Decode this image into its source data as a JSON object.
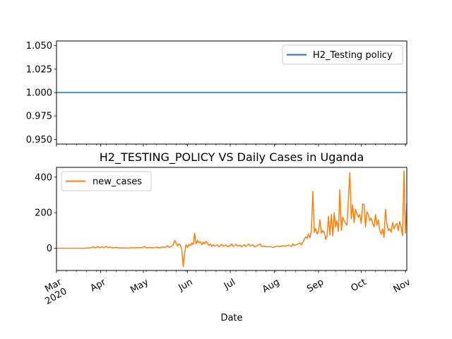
{
  "chart_data": [
    {
      "type": "line",
      "title": "",
      "xlabel": "",
      "ylabel": "",
      "xlim": [
        "2020-03-01",
        "2020-11-02"
      ],
      "ylim": [
        0.945,
        1.055
      ],
      "yticks": [
        0.95,
        0.975,
        1.0,
        1.025,
        1.05
      ],
      "ytick_labels": [
        "0.950",
        "0.975",
        "1.000",
        "1.025",
        "1.050"
      ],
      "grid": false,
      "legend_position": "upper right",
      "series": [
        {
          "name": "H2_Testing policy",
          "color": "#1f77b4",
          "x": [
            "2020-03-01",
            "2020-11-02"
          ],
          "y": [
            1.0,
            1.0
          ]
        }
      ]
    },
    {
      "type": "line",
      "title": "H2_TESTING_POLICY VS Daily Cases in Uganda",
      "xlabel": "Date",
      "ylabel": "",
      "xlim": [
        "2020-03-01",
        "2020-11-02"
      ],
      "ylim": [
        -125,
        455
      ],
      "yticks": [
        0,
        200,
        400
      ],
      "ytick_labels": [
        "0",
        "200",
        "400"
      ],
      "xtick_labels": [
        {
          "date": "2020-03-01",
          "lines": [
            "Mar",
            "2020"
          ]
        },
        {
          "date": "2020-04-01",
          "lines": [
            "Apr"
          ]
        },
        {
          "date": "2020-05-01",
          "lines": [
            "May"
          ]
        },
        {
          "date": "2020-06-01",
          "lines": [
            "Jun"
          ]
        },
        {
          "date": "2020-07-01",
          "lines": [
            "Jul"
          ]
        },
        {
          "date": "2020-08-01",
          "lines": [
            "Aug"
          ]
        },
        {
          "date": "2020-09-01",
          "lines": [
            "Sep"
          ]
        },
        {
          "date": "2020-10-01",
          "lines": [
            "Oct"
          ]
        },
        {
          "date": "2020-11-01",
          "lines": [
            "Nov"
          ]
        }
      ],
      "grid": false,
      "legend_position": "upper left",
      "series": [
        {
          "name": "new_cases",
          "color": "#ff7f0e",
          "points": [
            [
              "2020-03-01",
              0
            ],
            [
              "2020-03-20",
              0
            ],
            [
              "2020-03-22",
              1
            ],
            [
              "2020-03-25",
              2
            ],
            [
              "2020-03-27",
              8
            ],
            [
              "2020-03-28",
              2
            ],
            [
              "2020-03-30",
              10
            ],
            [
              "2020-03-31",
              3
            ],
            [
              "2020-04-02",
              9
            ],
            [
              "2020-04-03",
              3
            ],
            [
              "2020-04-05",
              11
            ],
            [
              "2020-04-06",
              4
            ],
            [
              "2020-04-08",
              7
            ],
            [
              "2020-04-09",
              2
            ],
            [
              "2020-04-12",
              5
            ],
            [
              "2020-04-14",
              1
            ],
            [
              "2020-04-17",
              2
            ],
            [
              "2020-04-20",
              1
            ],
            [
              "2020-04-23",
              3
            ],
            [
              "2020-04-25",
              2
            ],
            [
              "2020-04-28",
              4
            ],
            [
              "2020-04-30",
              3
            ],
            [
              "2020-05-02",
              10
            ],
            [
              "2020-05-03",
              2
            ],
            [
              "2020-05-05",
              4
            ],
            [
              "2020-05-08",
              3
            ],
            [
              "2020-05-11",
              6
            ],
            [
              "2020-05-12",
              2
            ],
            [
              "2020-05-15",
              8
            ],
            [
              "2020-05-16",
              3
            ],
            [
              "2020-05-18",
              15
            ],
            [
              "2020-05-19",
              5
            ],
            [
              "2020-05-21",
              12
            ],
            [
              "2020-05-22",
              20
            ],
            [
              "2020-05-23",
              45
            ],
            [
              "2020-05-24",
              30
            ],
            [
              "2020-05-25",
              12
            ],
            [
              "2020-05-26",
              25
            ],
            [
              "2020-05-27",
              18
            ],
            [
              "2020-05-28",
              -8
            ],
            [
              "2020-05-29",
              -103
            ],
            [
              "2020-05-30",
              -25
            ],
            [
              "2020-05-31",
              20
            ],
            [
              "2020-06-01",
              5
            ],
            [
              "2020-06-02",
              22
            ],
            [
              "2020-06-03",
              15
            ],
            [
              "2020-06-04",
              30
            ],
            [
              "2020-06-05",
              20
            ],
            [
              "2020-06-06",
              85
            ],
            [
              "2020-06-07",
              25
            ],
            [
              "2020-06-08",
              45
            ],
            [
              "2020-06-09",
              30
            ],
            [
              "2020-06-10",
              38
            ],
            [
              "2020-06-11",
              20
            ],
            [
              "2020-06-12",
              35
            ],
            [
              "2020-06-13",
              25
            ],
            [
              "2020-06-14",
              40
            ],
            [
              "2020-06-15",
              28
            ],
            [
              "2020-06-16",
              15
            ],
            [
              "2020-06-17",
              25
            ],
            [
              "2020-06-18",
              10
            ],
            [
              "2020-06-19",
              20
            ],
            [
              "2020-06-20",
              12
            ],
            [
              "2020-06-22",
              20
            ],
            [
              "2020-06-23",
              8
            ],
            [
              "2020-06-25",
              22
            ],
            [
              "2020-06-26",
              12
            ],
            [
              "2020-06-28",
              18
            ],
            [
              "2020-06-29",
              10
            ],
            [
              "2020-07-01",
              15
            ],
            [
              "2020-07-02",
              25
            ],
            [
              "2020-07-03",
              10
            ],
            [
              "2020-07-05",
              22
            ],
            [
              "2020-07-06",
              12
            ],
            [
              "2020-07-08",
              18
            ],
            [
              "2020-07-09",
              8
            ],
            [
              "2020-07-11",
              20
            ],
            [
              "2020-07-12",
              10
            ],
            [
              "2020-07-14",
              25
            ],
            [
              "2020-07-15",
              12
            ],
            [
              "2020-07-17",
              20
            ],
            [
              "2020-07-18",
              8
            ],
            [
              "2020-07-20",
              15
            ],
            [
              "2020-07-22",
              25
            ],
            [
              "2020-07-23",
              10
            ],
            [
              "2020-07-25",
              12
            ],
            [
              "2020-07-27",
              8
            ],
            [
              "2020-07-29",
              10
            ],
            [
              "2020-07-31",
              5
            ],
            [
              "2020-08-01",
              8
            ],
            [
              "2020-08-03",
              12
            ],
            [
              "2020-08-05",
              10
            ],
            [
              "2020-08-07",
              15
            ],
            [
              "2020-08-09",
              12
            ],
            [
              "2020-08-11",
              18
            ],
            [
              "2020-08-13",
              10
            ],
            [
              "2020-08-14",
              25
            ],
            [
              "2020-08-15",
              15
            ],
            [
              "2020-08-17",
              22
            ],
            [
              "2020-08-19",
              30
            ],
            [
              "2020-08-20",
              20
            ],
            [
              "2020-08-22",
              50
            ],
            [
              "2020-08-23",
              65
            ],
            [
              "2020-08-24",
              55
            ],
            [
              "2020-08-25",
              80
            ],
            [
              "2020-08-26",
              60
            ],
            [
              "2020-08-27",
              100
            ],
            [
              "2020-08-28",
              320
            ],
            [
              "2020-08-29",
              90
            ],
            [
              "2020-08-30",
              110
            ],
            [
              "2020-08-31",
              80
            ],
            [
              "2020-09-01",
              95
            ],
            [
              "2020-09-02",
              160
            ],
            [
              "2020-09-03",
              85
            ],
            [
              "2020-09-04",
              100
            ],
            [
              "2020-09-05",
              90
            ],
            [
              "2020-09-06",
              50
            ],
            [
              "2020-09-07",
              70
            ],
            [
              "2020-09-08",
              180
            ],
            [
              "2020-09-09",
              75
            ],
            [
              "2020-09-10",
              190
            ],
            [
              "2020-09-11",
              70
            ],
            [
              "2020-09-12",
              200
            ],
            [
              "2020-09-13",
              120
            ],
            [
              "2020-09-14",
              155
            ],
            [
              "2020-09-15",
              95
            ],
            [
              "2020-09-16",
              330
            ],
            [
              "2020-09-17",
              100
            ],
            [
              "2020-09-18",
              175
            ],
            [
              "2020-09-19",
              155
            ],
            [
              "2020-09-20",
              140
            ],
            [
              "2020-09-21",
              130
            ],
            [
              "2020-09-22",
              280
            ],
            [
              "2020-09-23",
              425
            ],
            [
              "2020-09-24",
              165
            ],
            [
              "2020-09-25",
              245
            ],
            [
              "2020-09-26",
              145
            ],
            [
              "2020-09-27",
              220
            ],
            [
              "2020-09-28",
              195
            ],
            [
              "2020-09-29",
              175
            ],
            [
              "2020-09-30",
              190
            ],
            [
              "2020-10-01",
              140
            ],
            [
              "2020-10-02",
              250
            ],
            [
              "2020-10-03",
              245
            ],
            [
              "2020-10-04",
              120
            ],
            [
              "2020-10-05",
              205
            ],
            [
              "2020-10-06",
              190
            ],
            [
              "2020-10-07",
              155
            ],
            [
              "2020-10-08",
              170
            ],
            [
              "2020-10-09",
              140
            ],
            [
              "2020-10-10",
              120
            ],
            [
              "2020-10-11",
              190
            ],
            [
              "2020-10-12",
              130
            ],
            [
              "2020-10-13",
              160
            ],
            [
              "2020-10-14",
              100
            ],
            [
              "2020-10-15",
              80
            ],
            [
              "2020-10-16",
              110
            ],
            [
              "2020-10-17",
              60
            ],
            [
              "2020-10-18",
              220
            ],
            [
              "2020-10-19",
              140
            ],
            [
              "2020-10-20",
              100
            ],
            [
              "2020-10-21",
              110
            ],
            [
              "2020-10-22",
              90
            ],
            [
              "2020-10-23",
              145
            ],
            [
              "2020-10-24",
              110
            ],
            [
              "2020-10-25",
              130
            ],
            [
              "2020-10-26",
              140
            ],
            [
              "2020-10-27",
              100
            ],
            [
              "2020-10-28",
              150
            ],
            [
              "2020-10-29",
              120
            ],
            [
              "2020-10-30",
              70
            ],
            [
              "2020-10-31",
              435
            ],
            [
              "2020-11-01",
              85
            ],
            [
              "2020-11-02",
              250
            ]
          ]
        }
      ]
    }
  ]
}
